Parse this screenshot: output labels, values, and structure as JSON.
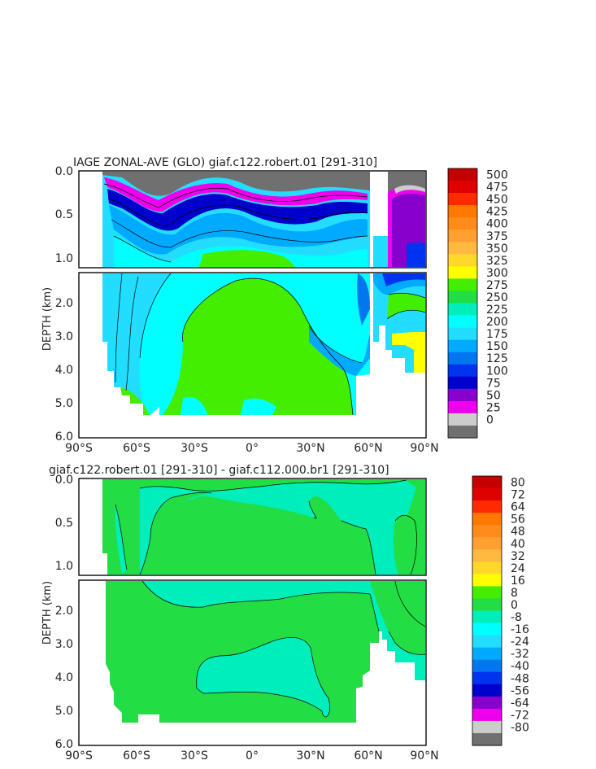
{
  "chart_data": [
    {
      "type": "heatmap",
      "title": "IAGE ZONAL-AVE (GLO) giaf.c122.robert.01 [291-310]",
      "ylabel": "DEPTH (km)",
      "x_ticks": [
        "90°S",
        "60°S",
        "30°S",
        "0°",
        "30°N",
        "60°N",
        "90°N"
      ],
      "y_ticks_upper": [
        "0.0",
        "0.5",
        "1.0"
      ],
      "y_ticks_lower": [
        "2.0",
        "3.0",
        "4.0",
        "5.0",
        "6.0"
      ],
      "xlim": [
        -90,
        90
      ],
      "ylim": [
        6.0,
        0.0
      ],
      "colorbar_labels": [
        "500",
        "475",
        "450",
        "425",
        "400",
        "375",
        "350",
        "325",
        "300",
        "275",
        "250",
        "225",
        "200",
        "175",
        "150",
        "125",
        "100",
        "75",
        "50",
        "25",
        "0"
      ],
      "colorbar_colors": [
        "#c40000",
        "#e00000",
        "#ff2a00",
        "#ff7800",
        "#ff8c1a",
        "#ffa030",
        "#ffb840",
        "#ffd82a",
        "#ffff00",
        "#44ee00",
        "#22dd44",
        "#00eebb",
        "#00ffff",
        "#22ddff",
        "#00aaff",
        "#0077ee",
        "#0033ee",
        "#0000cc",
        "#8800cc",
        "#ee00ee",
        "#cccccc",
        "#707070"
      ]
    },
    {
      "type": "heatmap",
      "title": "giaf.c122.robert.01 [291-310] - giaf.c112.000.br1 [291-310]",
      "ylabel": "DEPTH (km)",
      "x_ticks": [
        "90°S",
        "60°S",
        "30°S",
        "0°",
        "30°N",
        "60°N",
        "90°N"
      ],
      "y_ticks_upper": [
        "0.0",
        "0.5",
        "1.0"
      ],
      "y_ticks_lower": [
        "2.0",
        "3.0",
        "4.0",
        "5.0",
        "6.0"
      ],
      "xlim": [
        -90,
        90
      ],
      "ylim": [
        6.0,
        0.0
      ],
      "colorbar_labels": [
        "80",
        "72",
        "64",
        "56",
        "48",
        "40",
        "32",
        "24",
        "16",
        "8",
        "0",
        "-8",
        "-16",
        "-24",
        "-32",
        "-40",
        "-48",
        "-56",
        "-64",
        "-72",
        "-80"
      ],
      "colorbar_colors": [
        "#c40000",
        "#e00000",
        "#ff2a00",
        "#ff7800",
        "#ff8c1a",
        "#ffa030",
        "#ffb840",
        "#ffd82a",
        "#ffff00",
        "#44ee00",
        "#22dd44",
        "#00eebb",
        "#00ffff",
        "#22ddff",
        "#00aaff",
        "#0077ee",
        "#0033ee",
        "#0000cc",
        "#8800cc",
        "#ee00ee",
        "#cccccc",
        "#707070"
      ]
    }
  ]
}
